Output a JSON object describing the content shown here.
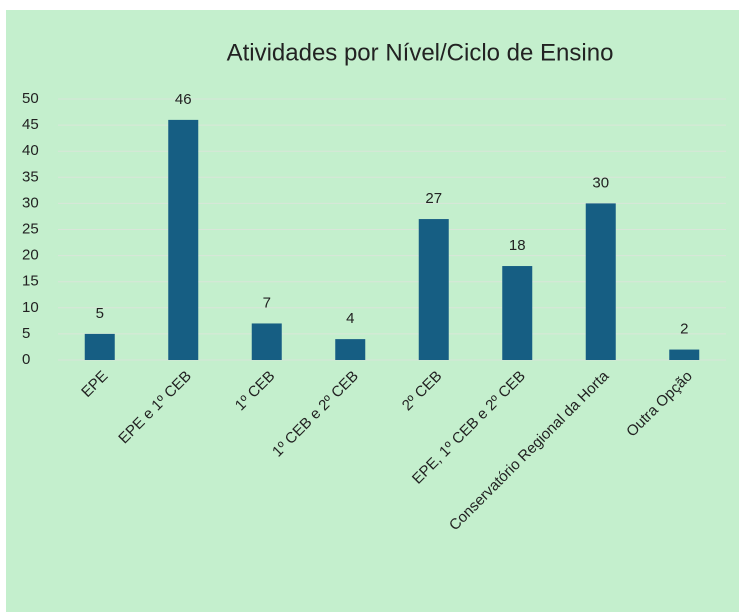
{
  "chart_data": {
    "type": "bar",
    "title": "Atividades por Nível/Ciclo de Ensino",
    "categories": [
      "EPE",
      "EPE e 1º CEB",
      "1º CEB",
      "1º CEB e 2º CEB",
      "2º CEB",
      "EPE, 1º CEB e 2º CEB",
      "Conservatório Regional da Horta",
      "Outra Opção"
    ],
    "values": [
      5,
      46,
      7,
      4,
      27,
      18,
      30,
      2
    ],
    "color": "#165e83",
    "ylim": [
      0,
      50
    ],
    "yticks": [
      0,
      5,
      10,
      15,
      20,
      25,
      30,
      35,
      40,
      45,
      50
    ],
    "grid": true,
    "data_labels": true
  }
}
